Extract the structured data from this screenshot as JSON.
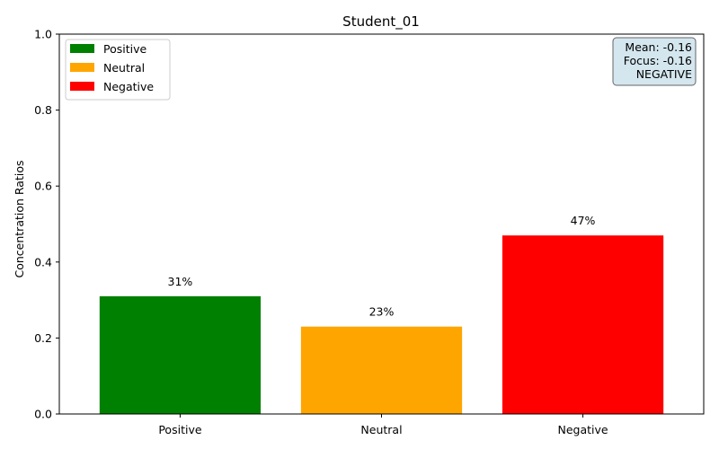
{
  "chart_data": {
    "type": "bar",
    "title": "Student_01",
    "xlabel": "",
    "ylabel": "Concentration Ratios",
    "categories": [
      "Positive",
      "Neutral",
      "Negative"
    ],
    "values": [
      0.31,
      0.23,
      0.47
    ],
    "data_labels": [
      "31%",
      "23%",
      "47%"
    ],
    "colors": [
      "#008000",
      "#ffa500",
      "#ff0000"
    ],
    "ylim": [
      0,
      1.0
    ],
    "yticks": [
      "0.0",
      "0.2",
      "0.4",
      "0.6",
      "0.8",
      "1.0"
    ],
    "grid": false,
    "legend": {
      "position": "top-left",
      "entries": [
        {
          "label": "Positive",
          "color": "#008000"
        },
        {
          "label": "Neutral",
          "color": "#ffa500"
        },
        {
          "label": "Negative",
          "color": "#ff0000"
        }
      ]
    },
    "info_box": {
      "position": "top-right",
      "lines": [
        "Mean: -0.16",
        "Focus: -0.16",
        "NEGATIVE"
      ],
      "background": "#d4e6ee",
      "border": "#666666"
    }
  }
}
